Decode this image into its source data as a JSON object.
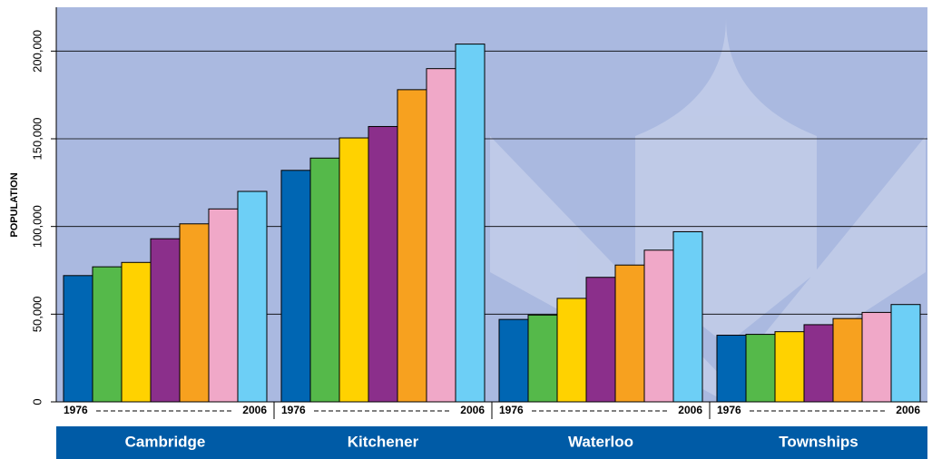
{
  "chart_data": {
    "type": "bar",
    "y_label": "POPULATION",
    "categories": [
      "Cambridge",
      "Kitchener",
      "Waterloo",
      "Townships"
    ],
    "period_start": "1976",
    "period_end": "2006",
    "series": [
      {
        "color": "#0066b3",
        "values": [
          72000,
          132000,
          47000,
          38000
        ]
      },
      {
        "color": "#55b94a",
        "values": [
          77000,
          139000,
          49500,
          38500
        ]
      },
      {
        "color": "#ffd200",
        "values": [
          79500,
          150500,
          59000,
          40000
        ]
      },
      {
        "color": "#8b2f8b",
        "values": [
          93000,
          157000,
          71000,
          44000
        ]
      },
      {
        "color": "#f7a11f",
        "values": [
          101500,
          178000,
          78000,
          47500
        ]
      },
      {
        "color": "#f0a8c8",
        "values": [
          110000,
          190000,
          86500,
          51000
        ]
      },
      {
        "color": "#6dcff6",
        "values": [
          120000,
          204000,
          97000,
          55500
        ]
      }
    ],
    "ylim": [
      0,
      225000
    ],
    "yticks": [
      0,
      {
        "value": 50000,
        "label": "50,000"
      },
      {
        "value": 100000,
        "label": "100,000"
      },
      {
        "value": 150000,
        "label": "150,000"
      },
      {
        "value": 200000,
        "label": "200,000"
      }
    ],
    "grid": true
  }
}
